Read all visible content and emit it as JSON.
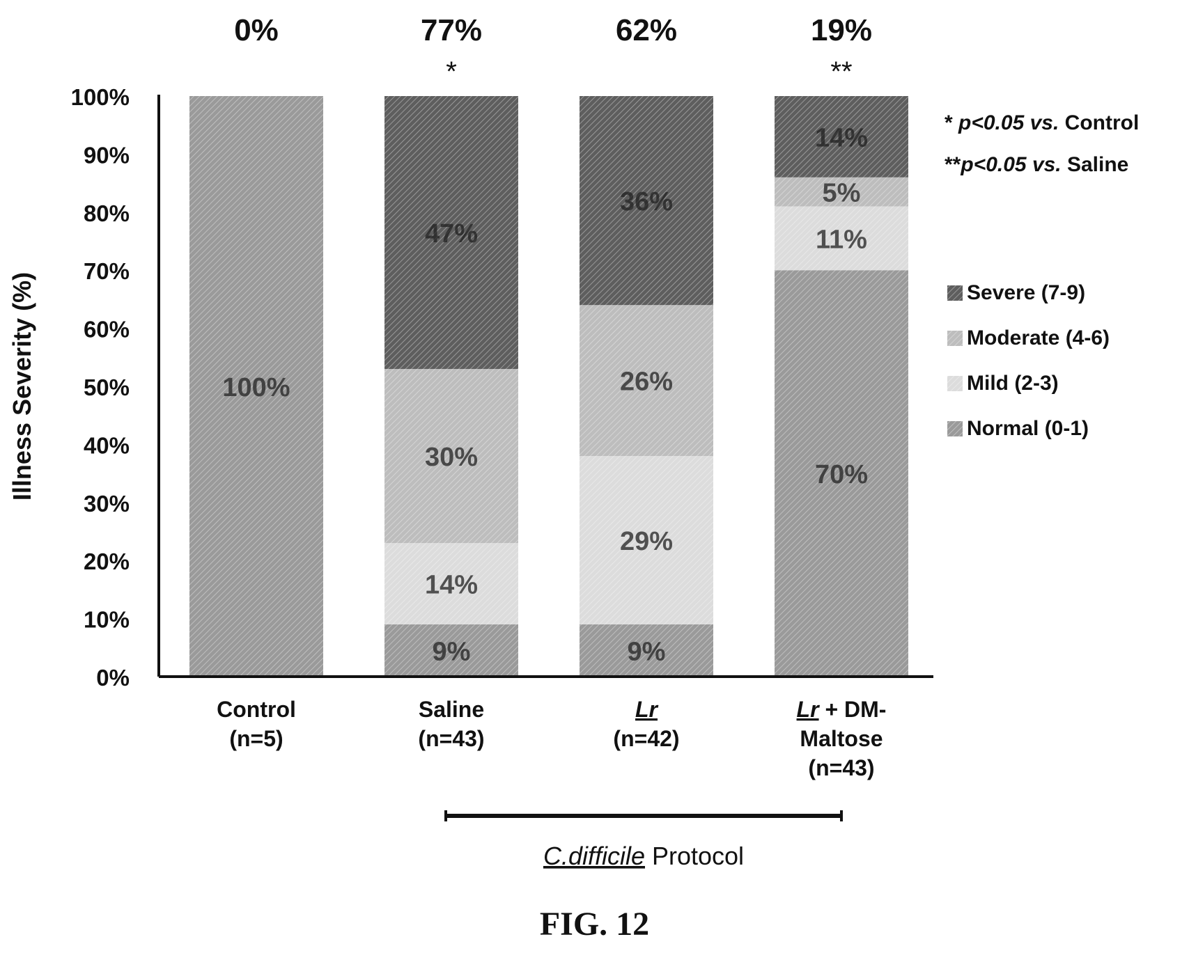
{
  "figure_label": "FIG. 12",
  "chart_data": {
    "type": "bar",
    "stacked": true,
    "ylabel": "Illness Severity (%)",
    "ylim": [
      0,
      100
    ],
    "yticks": [
      "0%",
      "10%",
      "20%",
      "30%",
      "40%",
      "50%",
      "60%",
      "70%",
      "80%",
      "90%",
      "100%"
    ],
    "categories": [
      {
        "line1": "Control",
        "line2": "(n=5)",
        "line3": ""
      },
      {
        "line1": "Saline",
        "line2": "(n=43)",
        "line3": ""
      },
      {
        "line1": "Lr",
        "line2": "(n=42)",
        "line3": ""
      },
      {
        "line1": "Lr + DM-",
        "line2": "Maltose",
        "line3": "(n=43)"
      }
    ],
    "top_labels": [
      "0%",
      "77%",
      "62%",
      "19%"
    ],
    "significance": [
      "",
      "*",
      "",
      "**"
    ],
    "series": [
      {
        "name": "Normal (0-1)",
        "values": [
          100,
          9,
          9,
          70
        ],
        "labels": [
          "100%",
          "9%",
          "9%",
          "70%"
        ],
        "color": "#9a9a9a"
      },
      {
        "name": "Mild (2-3)",
        "values": [
          0,
          14,
          29,
          11
        ],
        "labels": [
          "",
          "14%",
          "29%",
          "11%"
        ],
        "color": "#dcdcdc"
      },
      {
        "name": "Moderate (4-6)",
        "values": [
          0,
          30,
          26,
          5
        ],
        "labels": [
          "",
          "30%",
          "26%",
          "5%"
        ],
        "color": "#bdbdbd"
      },
      {
        "name": "Severe (7-9)",
        "values": [
          0,
          47,
          36,
          14
        ],
        "labels": [
          "",
          "47%",
          "36%",
          "14%"
        ],
        "color": "#5e5e5e"
      }
    ],
    "legend_order": [
      "Severe (7-9)",
      "Moderate (4-6)",
      "Mild (2-3)",
      "Normal (0-1)"
    ],
    "legend_position": "right",
    "notes": [
      "* p<0.05 vs. Control",
      "**p<0.05 vs. Saline"
    ],
    "group_bracket": {
      "label_italic": "C.difficile",
      "label_rest": " Protocol",
      "spans": [
        "Saline",
        "Lr + DM-Maltose"
      ]
    }
  }
}
